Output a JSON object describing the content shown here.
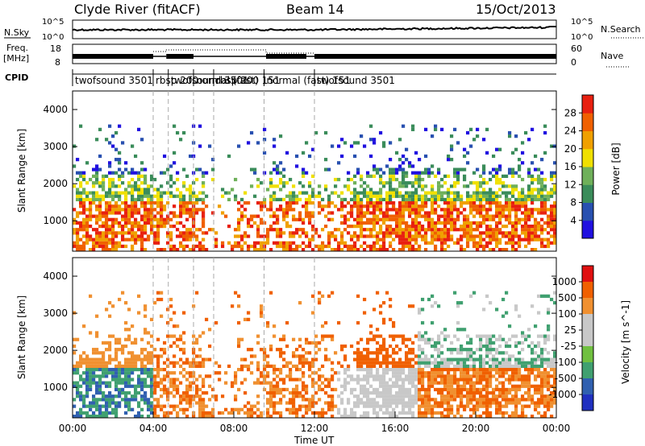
{
  "header": {
    "station": "Clyde River (fitACF)",
    "beam": "Beam 14",
    "date": "15/Oct/2013"
  },
  "panels": {
    "nsky_label": "N.Sky",
    "nsearch_label": "N.Search",
    "nsky_ticks": [
      "10^5",
      "10^0"
    ],
    "nsearch_ticks": [
      "10^5",
      "10^0"
    ],
    "freq_label_1": "Freq.",
    "freq_label_2": "[MHz]",
    "freq_ticks": [
      "18",
      "8"
    ],
    "nave_label": "Nave",
    "nave_ticks": [
      "60",
      "0"
    ],
    "cpid_label": "CPID",
    "cpid_segments": [
      {
        "label": "twofsound 3501",
        "start": 0.0,
        "end": 4.0
      },
      {
        "label": "rbsp 200",
        "start": 4.0,
        "end": 4.75
      },
      {
        "label": "twofsound 3501",
        "start": 4.75,
        "end": 6.0
      },
      {
        "label": "normal (fast) 151",
        "start": 6.0,
        "end": 7.0
      },
      {
        "label": "rbsp 200",
        "start": 7.0,
        "end": 9.5
      },
      {
        "label": "normal (fast) 151",
        "start": 9.5,
        "end": 12.0
      },
      {
        "label": "twofsound 3501",
        "start": 12.0,
        "end": 24.0
      }
    ]
  },
  "colors": {
    "power_scale": [
      "#2010e0",
      "#2850b0",
      "#3a8c5a",
      "#6fb05a",
      "#f0e000",
      "#f0a000",
      "#f06000",
      "#e82010"
    ],
    "velocity_scale": [
      "#e01010",
      "#f06000",
      "#f09030",
      "#c8c8c8",
      "#c8c8c8",
      "#70c040",
      "#40a070",
      "#3060b0",
      "#2030c0"
    ]
  },
  "chart_data": [
    {
      "type": "heatmap",
      "title": "Power",
      "ylabel": "Slant Range [km]",
      "colorbar_label": "Power [dB]",
      "colorbar_ticks": [
        "4",
        "8",
        "12",
        "16",
        "20",
        "24",
        "28"
      ],
      "x_range_hours": [
        0,
        24
      ],
      "ylim": [
        180,
        4500
      ],
      "y_ticks": [
        "1000",
        "2000",
        "3000",
        "4000"
      ]
    },
    {
      "type": "heatmap",
      "title": "Velocity",
      "ylabel": "Slant Range [km]",
      "colorbar_label": "Velocity [m s^-1]",
      "colorbar_ticks": [
        "1000",
        "500",
        "100",
        "25",
        "-25",
        "-100",
        "-500",
        "-1000"
      ],
      "x_range_hours": [
        0,
        24
      ],
      "ylim": [
        180,
        4500
      ],
      "y_ticks": [
        "1000",
        "2000",
        "3000",
        "4000"
      ]
    }
  ],
  "x_axis": {
    "label": "Time UT",
    "ticks": [
      "00:00",
      "04:00",
      "08:00",
      "12:00",
      "16:00",
      "20:00",
      "00:00"
    ]
  }
}
